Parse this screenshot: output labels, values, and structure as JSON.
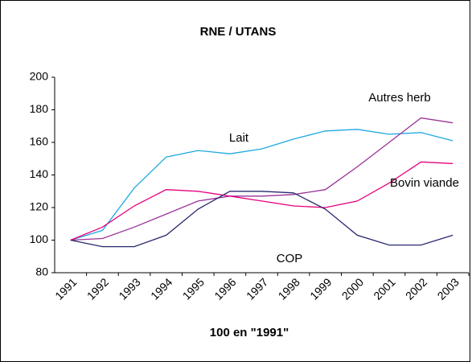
{
  "chart_data": {
    "type": "line",
    "title": "RNE / UTANS",
    "x_label": "100 en \"1991\"",
    "categories": [
      "1991",
      "1992",
      "1993",
      "1994",
      "1995",
      "1996",
      "1997",
      "1998",
      "1999",
      "2000",
      "2001",
      "2002",
      "2003"
    ],
    "series": [
      {
        "name": "Lait",
        "color": "#1ea8e0",
        "values": [
          100,
          106,
          132,
          151,
          155,
          153,
          156,
          162,
          167,
          168,
          165,
          166,
          161
        ]
      },
      {
        "name": "Autres herb",
        "color": "#993399",
        "values": [
          100,
          101,
          108,
          116,
          124,
          127,
          127,
          128,
          131,
          145,
          160,
          175,
          172
        ]
      },
      {
        "name": "Bovin viande",
        "color": "#e6007e",
        "values": [
          100,
          108,
          121,
          131,
          130,
          127,
          124,
          121,
          120,
          124,
          135,
          148,
          147
        ]
      },
      {
        "name": "COP",
        "color": "#28286e",
        "values": [
          100,
          96,
          96,
          103,
          119,
          130,
          130,
          129,
          119,
          103,
          97,
          97,
          103
        ]
      }
    ],
    "ylim": [
      80,
      200
    ],
    "yticks": [
      80,
      100,
      120,
      140,
      160,
      180,
      200
    ],
    "grid": false
  }
}
